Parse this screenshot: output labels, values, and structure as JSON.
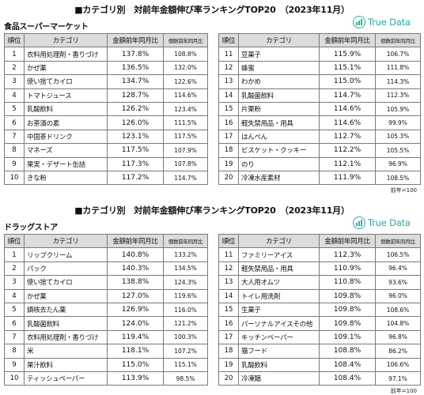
{
  "section1": {
    "title": "■カテゴリ別　対前年金額伸び率ランキングTOP20　（2023年11月）",
    "subtitle": "食品スーパーマーケット",
    "logo_text": "True Data",
    "headers": [
      "順位",
      "カテゴリ",
      "金額前年同月比",
      "個数前年同月比"
    ],
    "rows_left": [
      {
        "rank": "1",
        "category": "衣料用処理剤・香りづけ",
        "amount": "137.8%",
        "count": "108.8%"
      },
      {
        "rank": "2",
        "category": "かぜ薬",
        "amount": "136.5%",
        "count": "132.0%"
      },
      {
        "rank": "3",
        "category": "使い捨てカイロ",
        "amount": "134.7%",
        "count": "122.6%"
      },
      {
        "rank": "4",
        "category": "トマトジュース",
        "amount": "128.7%",
        "count": "114.6%"
      },
      {
        "rank": "5",
        "category": "乳酸飲料",
        "amount": "126.2%",
        "count": "123.4%"
      },
      {
        "rank": "6",
        "category": "お茶漬の素",
        "amount": "126.0%",
        "count": "111.5%"
      },
      {
        "rank": "7",
        "category": "中国茶ドリンク",
        "amount": "123.1%",
        "count": "117.5%"
      },
      {
        "rank": "8",
        "category": "マネーズ",
        "amount": "117.5%",
        "count": "107.9%"
      },
      {
        "rank": "9",
        "category": "果実・デザート缶詰",
        "amount": "117.3%",
        "count": "107.8%"
      },
      {
        "rank": "10",
        "category": "きな粉",
        "amount": "117.2%",
        "count": "114.7%"
      }
    ],
    "rows_right": [
      {
        "rank": "11",
        "category": "豆菓子",
        "amount": "115.9%",
        "count": "106.7%"
      },
      {
        "rank": "12",
        "category": "蜂蜜",
        "amount": "115.1%",
        "count": "111.8%"
      },
      {
        "rank": "13",
        "category": "わかめ",
        "amount": "115.0%",
        "count": "114.3%"
      },
      {
        "rank": "14",
        "category": "乳酸菌飲料",
        "amount": "114.7%",
        "count": "112.3%"
      },
      {
        "rank": "15",
        "category": "片栗粉",
        "amount": "114.6%",
        "count": "105.9%"
      },
      {
        "rank": "16",
        "category": "軽失禁用品・用具",
        "amount": "114.6%",
        "count": "99.9%"
      },
      {
        "rank": "17",
        "category": "はんぺん",
        "amount": "112.7%",
        "count": "105.3%"
      },
      {
        "rank": "18",
        "category": "ビスケット・クッキー",
        "amount": "112.2%",
        "count": "105.5%"
      },
      {
        "rank": "19",
        "category": "のり",
        "amount": "112.1%",
        "count": "96.9%"
      },
      {
        "rank": "20",
        "category": "冷凍水産素材",
        "amount": "111.9%",
        "count": "108.5%"
      }
    ],
    "note": "前年=100"
  },
  "section2": {
    "title": "■カテゴリ別　対前年金額伸び率ランキングTOP20　（2023年11月）",
    "subtitle": "ドラッグストア",
    "logo_text": "True Data",
    "headers": [
      "順位",
      "カテゴリ",
      "金額前年同月比",
      "個数前年同月比"
    ],
    "rows_left": [
      {
        "rank": "1",
        "category": "リップクリーム",
        "amount": "140.8%",
        "count": "133.2%"
      },
      {
        "rank": "2",
        "category": "パック",
        "amount": "140.3%",
        "count": "134.5%"
      },
      {
        "rank": "3",
        "category": "使い捨てカイロ",
        "amount": "138.8%",
        "count": "124.3%"
      },
      {
        "rank": "4",
        "category": "かぜ薬",
        "amount": "127.0%",
        "count": "119.6%"
      },
      {
        "rank": "5",
        "category": "鎮咳去たん薬",
        "amount": "126.9%",
        "count": "116.0%"
      },
      {
        "rank": "6",
        "category": "乳酸菌飲料",
        "amount": "124.0%",
        "count": "121.2%"
      },
      {
        "rank": "7",
        "category": "衣料用処理剤・香りづけ",
        "amount": "119.4%",
        "count": "100.3%"
      },
      {
        "rank": "8",
        "category": "米",
        "amount": "118.1%",
        "count": "107.2%"
      },
      {
        "rank": "9",
        "category": "果汁飲料",
        "amount": "115.0%",
        "count": "115.1%"
      },
      {
        "rank": "10",
        "category": "ティッシュペーパー",
        "amount": "113.9%",
        "count": "98.5%"
      }
    ],
    "rows_right": [
      {
        "rank": "11",
        "category": "ファミリーアイス",
        "amount": "112.3%",
        "count": "106.5%"
      },
      {
        "rank": "12",
        "category": "軽失禁用品・用具",
        "amount": "110.9%",
        "count": "96.4%"
      },
      {
        "rank": "13",
        "category": "大人用オムツ",
        "amount": "110.8%",
        "count": "93.6%"
      },
      {
        "rank": "14",
        "category": "トイレ用洗剤",
        "amount": "109.8%",
        "count": "96.0%"
      },
      {
        "rank": "15",
        "category": "生菓子",
        "amount": "109.8%",
        "count": "108.6%"
      },
      {
        "rank": "16",
        "category": "パーソナルアイスその他",
        "amount": "109.8%",
        "count": "104.8%"
      },
      {
        "rank": "17",
        "category": "キッチンペーパー",
        "amount": "109.1%",
        "count": "96.8%"
      },
      {
        "rank": "18",
        "category": "猫フード",
        "amount": "108.8%",
        "count": "86.2%"
      },
      {
        "rank": "19",
        "category": "乳酸飲料",
        "amount": "108.4%",
        "count": "106.6%"
      },
      {
        "rank": "20",
        "category": "冷凍麺",
        "amount": "108.4%",
        "count": "97.1%"
      }
    ],
    "note": "前年=100"
  },
  "colors": {
    "header_bg": "#dcdcdc",
    "border": "#7a7a7a",
    "brand": "#2fa8a0"
  },
  "icons": {
    "logo": "bar-chart-circle-icon"
  }
}
